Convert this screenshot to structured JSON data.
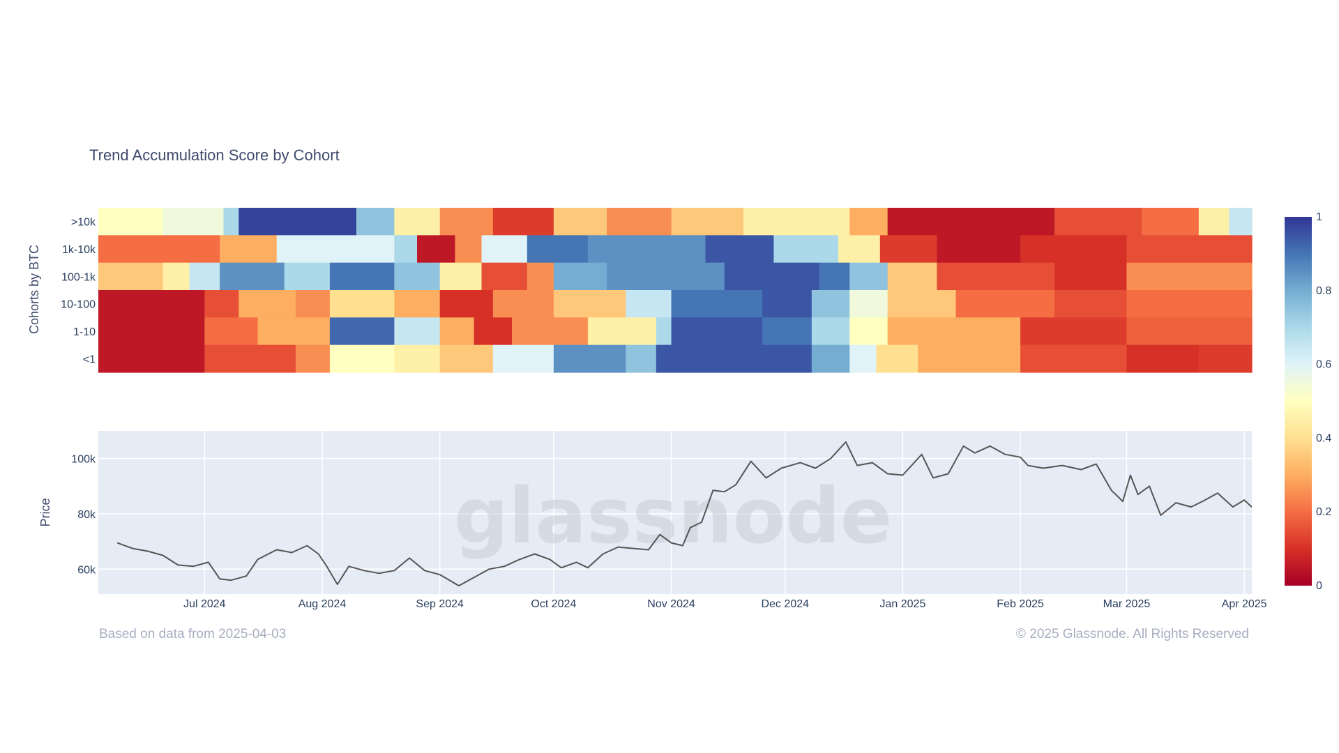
{
  "chart_data": [
    {
      "type": "heatmap",
      "title": "Trend Accumulation Score by Cohort",
      "ylabel": "Cohorts by BTC",
      "cohorts": [
        ">10k",
        "1k-10k",
        "100-1k",
        "10-100",
        "1-10",
        "<1"
      ],
      "x_range": [
        "2024-06-03",
        "2025-04-03"
      ],
      "colorscale": {
        "range": [
          0,
          1
        ],
        "ticks": [
          "0",
          "0.2",
          "0.4",
          "0.6",
          "0.8",
          "1"
        ],
        "colors": [
          "#a50026",
          "#d73027",
          "#f46d43",
          "#fdae61",
          "#fee090",
          "#ffffbf",
          "#e0f3f8",
          "#abd9e9",
          "#74add1",
          "#4575b4",
          "#313695"
        ]
      },
      "segments": [
        [
          [
            "2024-06-03",
            0.5
          ],
          [
            "2024-06-20",
            0.55
          ],
          [
            "2024-07-06",
            0.7
          ],
          [
            "2024-07-10",
            0.98
          ],
          [
            "2024-08-10",
            0.75
          ],
          [
            "2024-08-20",
            0.45
          ],
          [
            "2024-09-01",
            0.25
          ],
          [
            "2024-09-15",
            0.12
          ],
          [
            "2024-10-01",
            0.35
          ],
          [
            "2024-10-15",
            0.25
          ],
          [
            "2024-11-01",
            0.35
          ],
          [
            "2024-11-20",
            0.45
          ],
          [
            "2024-12-18",
            0.3
          ],
          [
            "2024-12-28",
            0.05
          ],
          [
            "2025-02-10",
            0.15
          ],
          [
            "2025-03-05",
            0.2
          ],
          [
            "2025-03-20",
            0.45
          ],
          [
            "2025-03-28",
            0.65
          ]
        ],
        [
          [
            "2024-06-03",
            0.2
          ],
          [
            "2024-07-05",
            0.3
          ],
          [
            "2024-07-20",
            0.6
          ],
          [
            "2024-08-20",
            0.7
          ],
          [
            "2024-08-26",
            0.05
          ],
          [
            "2024-09-05",
            0.25
          ],
          [
            "2024-09-12",
            0.6
          ],
          [
            "2024-09-24",
            0.9
          ],
          [
            "2024-10-10",
            0.85
          ],
          [
            "2024-11-10",
            0.95
          ],
          [
            "2024-11-28",
            0.7
          ],
          [
            "2024-12-15",
            0.45
          ],
          [
            "2024-12-26",
            0.12
          ],
          [
            "2025-01-10",
            0.05
          ],
          [
            "2025-02-01",
            0.1
          ],
          [
            "2025-03-01",
            0.15
          ]
        ],
        [
          [
            "2024-06-03",
            0.35
          ],
          [
            "2024-06-20",
            0.45
          ],
          [
            "2024-06-27",
            0.65
          ],
          [
            "2024-07-05",
            0.85
          ],
          [
            "2024-07-22",
            0.7
          ],
          [
            "2024-08-03",
            0.9
          ],
          [
            "2024-08-20",
            0.75
          ],
          [
            "2024-09-01",
            0.45
          ],
          [
            "2024-09-12",
            0.15
          ],
          [
            "2024-09-24",
            0.25
          ],
          [
            "2024-10-01",
            0.8
          ],
          [
            "2024-10-15",
            0.85
          ],
          [
            "2024-11-15",
            0.95
          ],
          [
            "2024-12-10",
            0.9
          ],
          [
            "2024-12-18",
            0.75
          ],
          [
            "2024-12-28",
            0.35
          ],
          [
            "2025-01-10",
            0.15
          ],
          [
            "2025-02-10",
            0.1
          ],
          [
            "2025-03-01",
            0.25
          ]
        ],
        [
          [
            "2024-06-03",
            0.05
          ],
          [
            "2024-07-01",
            0.15
          ],
          [
            "2024-07-10",
            0.3
          ],
          [
            "2024-07-25",
            0.25
          ],
          [
            "2024-08-03",
            0.4
          ],
          [
            "2024-08-20",
            0.3
          ],
          [
            "2024-09-01",
            0.1
          ],
          [
            "2024-09-15",
            0.25
          ],
          [
            "2024-10-01",
            0.35
          ],
          [
            "2024-10-20",
            0.65
          ],
          [
            "2024-11-01",
            0.9
          ],
          [
            "2024-11-25",
            0.95
          ],
          [
            "2024-12-08",
            0.75
          ],
          [
            "2024-12-18",
            0.55
          ],
          [
            "2024-12-28",
            0.35
          ],
          [
            "2025-01-15",
            0.2
          ],
          [
            "2025-02-10",
            0.15
          ],
          [
            "2025-03-01",
            0.2
          ]
        ],
        [
          [
            "2024-06-03",
            0.05
          ],
          [
            "2024-07-01",
            0.2
          ],
          [
            "2024-07-15",
            0.3
          ],
          [
            "2024-08-03",
            0.92
          ],
          [
            "2024-08-20",
            0.65
          ],
          [
            "2024-09-01",
            0.3
          ],
          [
            "2024-09-10",
            0.1
          ],
          [
            "2024-09-20",
            0.25
          ],
          [
            "2024-10-10",
            0.45
          ],
          [
            "2024-10-28",
            0.7
          ],
          [
            "2024-11-01",
            0.95
          ],
          [
            "2024-11-25",
            0.9
          ],
          [
            "2024-12-08",
            0.7
          ],
          [
            "2024-12-18",
            0.5
          ],
          [
            "2024-12-28",
            0.3
          ],
          [
            "2025-02-01",
            0.12
          ],
          [
            "2025-03-01",
            0.18
          ]
        ],
        [
          [
            "2024-06-03",
            0.05
          ],
          [
            "2024-07-01",
            0.15
          ],
          [
            "2024-07-25",
            0.25
          ],
          [
            "2024-08-03",
            0.5
          ],
          [
            "2024-08-20",
            0.45
          ],
          [
            "2024-09-01",
            0.35
          ],
          [
            "2024-09-15",
            0.6
          ],
          [
            "2024-10-01",
            0.85
          ],
          [
            "2024-10-20",
            0.75
          ],
          [
            "2024-10-28",
            0.95
          ],
          [
            "2024-11-25",
            0.95
          ],
          [
            "2024-12-08",
            0.8
          ],
          [
            "2024-12-18",
            0.6
          ],
          [
            "2024-12-25",
            0.4
          ],
          [
            "2025-01-05",
            0.3
          ],
          [
            "2025-02-01",
            0.15
          ],
          [
            "2025-03-01",
            0.1
          ],
          [
            "2025-03-20",
            0.12
          ]
        ]
      ]
    },
    {
      "type": "line",
      "ylabel": "Price",
      "y_ticks": [
        "60k",
        "80k",
        "100k"
      ],
      "ylim": [
        51000,
        110000
      ],
      "x_ticks": [
        "Jul 2024",
        "Aug 2024",
        "Sep 2024",
        "Oct 2024",
        "Nov 2024",
        "Dec 2024",
        "Jan 2025",
        "Feb 2025",
        "Mar 2025",
        "Apr 2025"
      ],
      "x_tick_dates": [
        "2024-07-01",
        "2024-08-01",
        "2024-09-01",
        "2024-10-01",
        "2024-11-01",
        "2024-12-01",
        "2025-01-01",
        "2025-02-01",
        "2025-03-01",
        "2025-04-01"
      ],
      "series": [
        {
          "color": "#555555",
          "points": [
            [
              "2024-06-08",
              69500
            ],
            [
              "2024-06-12",
              67500
            ],
            [
              "2024-06-16",
              66500
            ],
            [
              "2024-06-20",
              65000
            ],
            [
              "2024-06-24",
              61500
            ],
            [
              "2024-06-28",
              61000
            ],
            [
              "2024-07-02",
              62500
            ],
            [
              "2024-07-05",
              56500
            ],
            [
              "2024-07-08",
              56000
            ],
            [
              "2024-07-12",
              57500
            ],
            [
              "2024-07-15",
              63500
            ],
            [
              "2024-07-20",
              67000
            ],
            [
              "2024-07-24",
              66000
            ],
            [
              "2024-07-28",
              68500
            ],
            [
              "2024-07-31",
              65500
            ],
            [
              "2024-08-02",
              61500
            ],
            [
              "2024-08-05",
              54500
            ],
            [
              "2024-08-08",
              61000
            ],
            [
              "2024-08-12",
              59500
            ],
            [
              "2024-08-16",
              58500
            ],
            [
              "2024-08-20",
              59500
            ],
            [
              "2024-08-24",
              64000
            ],
            [
              "2024-08-28",
              59500
            ],
            [
              "2024-09-01",
              58000
            ],
            [
              "2024-09-06",
              54000
            ],
            [
              "2024-09-10",
              57000
            ],
            [
              "2024-09-14",
              60000
            ],
            [
              "2024-09-18",
              61000
            ],
            [
              "2024-09-22",
              63500
            ],
            [
              "2024-09-26",
              65500
            ],
            [
              "2024-09-30",
              63500
            ],
            [
              "2024-10-03",
              60500
            ],
            [
              "2024-10-07",
              62500
            ],
            [
              "2024-10-10",
              60500
            ],
            [
              "2024-10-14",
              65500
            ],
            [
              "2024-10-18",
              68000
            ],
            [
              "2024-10-22",
              67500
            ],
            [
              "2024-10-26",
              67000
            ],
            [
              "2024-10-29",
              72500
            ],
            [
              "2024-11-01",
              69500
            ],
            [
              "2024-11-04",
              68500
            ],
            [
              "2024-11-06",
              75000
            ],
            [
              "2024-11-09",
              77000
            ],
            [
              "2024-11-12",
              88500
            ],
            [
              "2024-11-15",
              88000
            ],
            [
              "2024-11-18",
              90500
            ],
            [
              "2024-11-22",
              99000
            ],
            [
              "2024-11-26",
              93000
            ],
            [
              "2024-11-30",
              96500
            ],
            [
              "2024-12-05",
              98500
            ],
            [
              "2024-12-09",
              96500
            ],
            [
              "2024-12-13",
              100000
            ],
            [
              "2024-12-17",
              106000
            ],
            [
              "2024-12-20",
              97500
            ],
            [
              "2024-12-24",
              98500
            ],
            [
              "2024-12-28",
              94500
            ],
            [
              "2025-01-01",
              94000
            ],
            [
              "2025-01-06",
              101500
            ],
            [
              "2025-01-09",
              93000
            ],
            [
              "2025-01-13",
              94500
            ],
            [
              "2025-01-17",
              104500
            ],
            [
              "2025-01-20",
              102000
            ],
            [
              "2025-01-24",
              104500
            ],
            [
              "2025-01-28",
              101500
            ],
            [
              "2025-02-01",
              100500
            ],
            [
              "2025-02-03",
              97500
            ],
            [
              "2025-02-07",
              96500
            ],
            [
              "2025-02-12",
              97500
            ],
            [
              "2025-02-17",
              96000
            ],
            [
              "2025-02-21",
              98000
            ],
            [
              "2025-02-25",
              88500
            ],
            [
              "2025-02-28",
              84500
            ],
            [
              "2025-03-02",
              94000
            ],
            [
              "2025-03-04",
              87000
            ],
            [
              "2025-03-07",
              90000
            ],
            [
              "2025-03-10",
              79500
            ],
            [
              "2025-03-14",
              84000
            ],
            [
              "2025-03-18",
              82500
            ],
            [
              "2025-03-21",
              84500
            ],
            [
              "2025-03-25",
              87500
            ],
            [
              "2025-03-29",
              82500
            ],
            [
              "2025-04-01",
              85000
            ],
            [
              "2025-04-03",
              82500
            ]
          ]
        }
      ]
    }
  ],
  "watermark": "glassnode",
  "footer": {
    "left": "Based on data from 2025-04-03",
    "right": "© 2025 Glassnode. All Rights Reserved"
  }
}
